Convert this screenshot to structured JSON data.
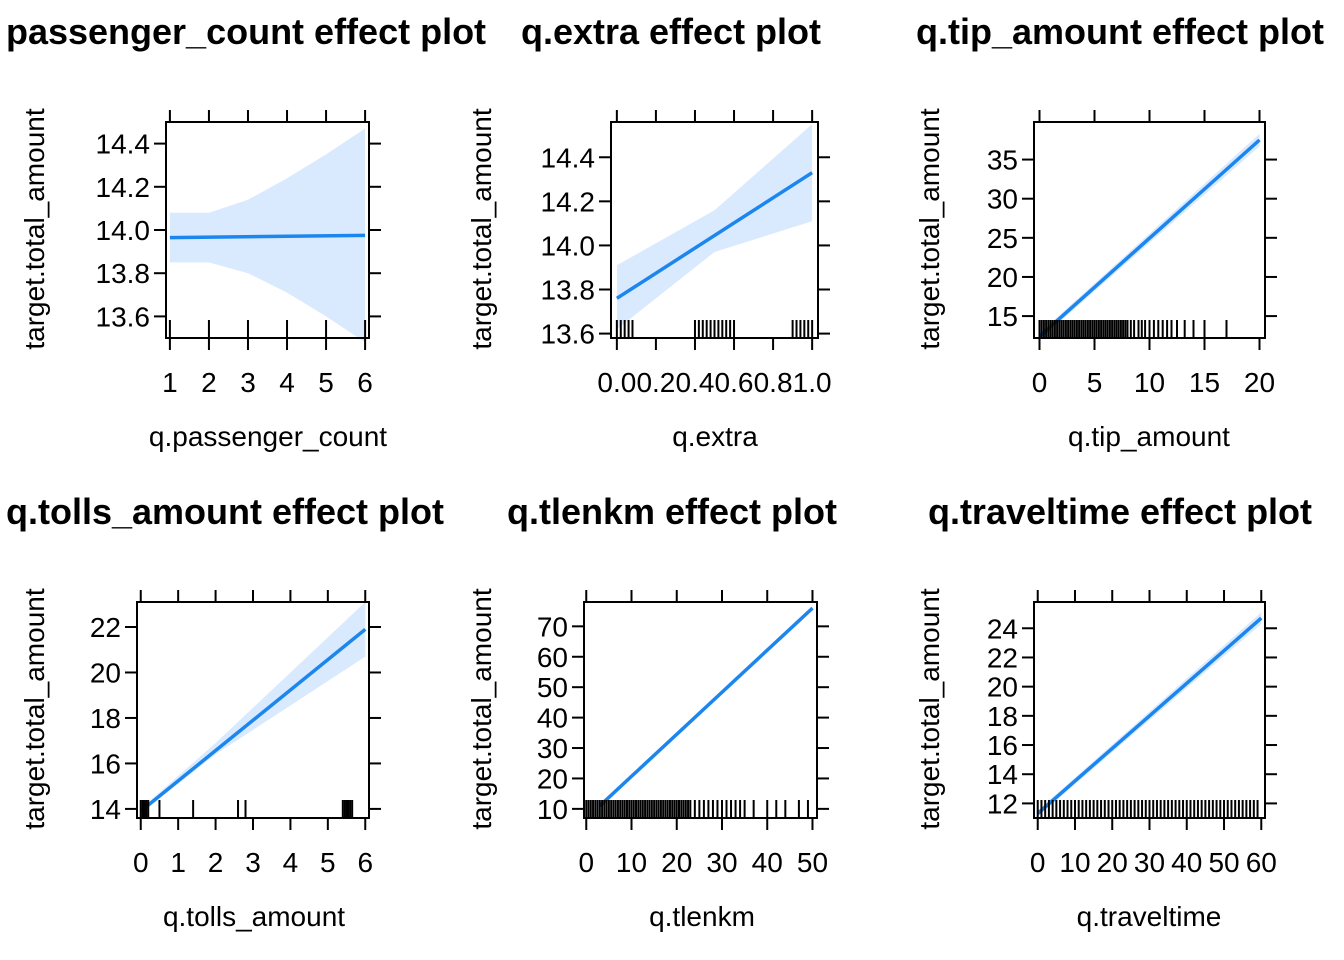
{
  "colors": {
    "line": "#1C86EE",
    "band": "#D9EAFE"
  },
  "chart_data": [
    {
      "type": "line",
      "title": "passenger_count effect plot",
      "xlabel": "q.passenger_count",
      "ylabel": "target.total_amount",
      "xlim": [
        0.9,
        6.1
      ],
      "ylim": [
        13.5,
        14.5
      ],
      "xticks": [
        1,
        2,
        3,
        4,
        5,
        6
      ],
      "xtick_labels": [
        "1",
        "2",
        "3",
        "4",
        "5",
        "6"
      ],
      "yticks": [
        13.6,
        13.8,
        14.0,
        14.2,
        14.4
      ],
      "ytick_labels": [
        "13.6",
        "13.8",
        "14.0",
        "14.2",
        "14.4"
      ],
      "fit": {
        "x": [
          1,
          6
        ],
        "y": [
          13.965,
          13.975
        ]
      },
      "band": {
        "x": [
          1,
          2,
          3,
          4,
          5,
          6
        ],
        "upper": [
          14.08,
          14.08,
          14.14,
          14.24,
          14.35,
          14.47
        ],
        "lower": [
          13.85,
          13.85,
          13.8,
          13.71,
          13.6,
          13.48
        ]
      },
      "rug": [
        1,
        2,
        3,
        4,
        5,
        6
      ]
    },
    {
      "type": "line",
      "title": "q.extra effect plot",
      "xlabel": "q.extra",
      "ylabel": "target.total_amount",
      "xlim": [
        -0.03,
        1.03
      ],
      "ylim": [
        13.58,
        14.56
      ],
      "xticks": [
        0,
        0.2,
        0.4,
        0.6,
        0.8,
        1.0
      ],
      "xtick_labels": [
        "0.0",
        "0.2",
        "0.4",
        "0.6",
        "0.8",
        "1.0"
      ],
      "yticks": [
        13.6,
        13.8,
        14.0,
        14.2,
        14.4
      ],
      "ytick_labels": [
        "13.6",
        "13.8",
        "14.0",
        "14.2",
        "14.4"
      ],
      "fit": {
        "x": [
          0,
          1
        ],
        "y": [
          13.76,
          14.33
        ]
      },
      "band": {
        "x": [
          0,
          0.5,
          1
        ],
        "upper": [
          13.91,
          14.16,
          14.55
        ],
        "lower": [
          13.62,
          13.97,
          14.11
        ]
      },
      "rug": [
        0,
        0.02,
        0.04,
        0.06,
        0.08,
        0.4,
        0.42,
        0.44,
        0.46,
        0.48,
        0.5,
        0.52,
        0.54,
        0.56,
        0.58,
        0.6,
        0.9,
        0.92,
        0.94,
        0.96,
        0.98,
        1.0
      ]
    },
    {
      "type": "line",
      "title": "q.tip_amount effect plot",
      "xlabel": "q.tip_amount",
      "ylabel": "target.total_amount",
      "xlim": [
        -0.5,
        20.5
      ],
      "ylim": [
        12.2,
        39.8
      ],
      "xticks": [
        0,
        5,
        10,
        15,
        20
      ],
      "xtick_labels": [
        "0",
        "5",
        "10",
        "15",
        "20"
      ],
      "yticks": [
        15,
        20,
        25,
        30,
        35
      ],
      "ytick_labels": [
        "15",
        "20",
        "25",
        "30",
        "35"
      ],
      "fit": {
        "x": [
          0,
          20
        ],
        "y": [
          12.4,
          37.5
        ]
      },
      "band": {
        "x": [
          0,
          20
        ],
        "upper": [
          12.8,
          38.3
        ],
        "lower": [
          12.0,
          36.7
        ]
      },
      "rug": [
        0,
        0.2,
        0.4,
        0.6,
        0.8,
        1,
        1.2,
        1.4,
        1.6,
        1.8,
        2,
        2.2,
        2.4,
        2.6,
        2.8,
        3,
        3.2,
        3.4,
        3.6,
        3.8,
        4,
        4.2,
        4.4,
        4.6,
        4.8,
        5,
        5.2,
        5.4,
        5.6,
        5.8,
        6,
        6.2,
        6.4,
        6.6,
        6.8,
        7,
        7.2,
        7.4,
        7.6,
        7.8,
        8,
        8.3,
        8.6,
        9,
        9.3,
        9.6,
        10,
        10.4,
        10.8,
        11.2,
        11.6,
        12,
        12.5,
        13.2,
        14,
        15,
        17
      ]
    },
    {
      "type": "line",
      "title": "q.tolls_amount effect plot",
      "xlabel": "q.tolls_amount",
      "ylabel": "target.total_amount",
      "xlim": [
        -0.1,
        6.1
      ],
      "ylim": [
        13.6,
        23.1
      ],
      "xticks": [
        0,
        1,
        2,
        3,
        4,
        5,
        6
      ],
      "xtick_labels": [
        "0",
        "1",
        "2",
        "3",
        "4",
        "5",
        "6"
      ],
      "yticks": [
        14,
        16,
        18,
        20,
        22
      ],
      "ytick_labels": [
        "14",
        "16",
        "18",
        "20",
        "22"
      ],
      "fit": {
        "x": [
          0,
          6
        ],
        "y": [
          13.9,
          21.9
        ]
      },
      "band": {
        "x": [
          0,
          2,
          6
        ],
        "upper": [
          14.0,
          16.9,
          23.1
        ],
        "lower": [
          13.8,
          16.4,
          20.7
        ]
      },
      "rug": [
        0,
        0.05,
        0.1,
        0.15,
        0.2,
        0.5,
        1.4,
        2.6,
        2.8,
        5.4,
        5.45,
        5.5,
        5.55,
        5.6,
        5.65
      ]
    },
    {
      "type": "line",
      "title": "q.tlenkm effect plot",
      "xlabel": "q.tlenkm",
      "ylabel": "target.total_amount",
      "xlim": [
        -0.5,
        51
      ],
      "ylim": [
        7,
        78
      ],
      "xticks": [
        0,
        10,
        20,
        30,
        40,
        50
      ],
      "xtick_labels": [
        "0",
        "10",
        "20",
        "30",
        "40",
        "50"
      ],
      "yticks": [
        10,
        20,
        30,
        40,
        50,
        60,
        70
      ],
      "ytick_labels": [
        "10",
        "20",
        "30",
        "40",
        "50",
        "60",
        "70"
      ],
      "fit": {
        "x": [
          3,
          50
        ],
        "y": [
          11,
          76
        ]
      },
      "band": {
        "x": [
          3,
          50
        ],
        "upper": [
          11.3,
          76.8
        ],
        "lower": [
          10.7,
          75.2
        ]
      },
      "rug": [
        0,
        0.5,
        1,
        1.5,
        2,
        2.5,
        3,
        3.5,
        4,
        4.5,
        5,
        5.5,
        6,
        6.5,
        7,
        7.5,
        8,
        8.5,
        9,
        9.5,
        10,
        10.5,
        11,
        11.5,
        12,
        12.5,
        13,
        13.5,
        14,
        14.5,
        15,
        15.5,
        16,
        16.5,
        17,
        17.5,
        18,
        18.5,
        19,
        19.5,
        20,
        20.5,
        21,
        21.5,
        22,
        22.5,
        23,
        24,
        25,
        26,
        27,
        28,
        29,
        30,
        31,
        32,
        33,
        34,
        35,
        37,
        40,
        42,
        44,
        47,
        49
      ]
    },
    {
      "type": "line",
      "title": "q.traveltime effect plot",
      "xlabel": "q.traveltime",
      "ylabel": "target.total_amount",
      "xlim": [
        -1,
        61
      ],
      "ylim": [
        11,
        25.8
      ],
      "xticks": [
        0,
        10,
        20,
        30,
        40,
        50,
        60
      ],
      "xtick_labels": [
        "0",
        "10",
        "20",
        "30",
        "40",
        "50",
        "60"
      ],
      "yticks": [
        12,
        14,
        16,
        18,
        20,
        22,
        24
      ],
      "ytick_labels": [
        "12",
        "14",
        "16",
        "18",
        "20",
        "22",
        "24"
      ],
      "fit": {
        "x": [
          0,
          60
        ],
        "y": [
          11.3,
          24.7
        ]
      },
      "band": {
        "x": [
          0,
          60
        ],
        "upper": [
          11.5,
          25.1
        ],
        "lower": [
          11.1,
          24.3
        ]
      },
      "rug": [
        0,
        1,
        2,
        3,
        4,
        5,
        6,
        7,
        8,
        9,
        10,
        11,
        12,
        13,
        14,
        15,
        16,
        17,
        18,
        19,
        20,
        21,
        22,
        23,
        24,
        25,
        26,
        27,
        28,
        29,
        30,
        31,
        32,
        33,
        34,
        35,
        36,
        37,
        38,
        39,
        40,
        41,
        42,
        43,
        44,
        45,
        46,
        47,
        48,
        49,
        50,
        51,
        52,
        53,
        54,
        55,
        56,
        57,
        58,
        59
      ]
    }
  ]
}
